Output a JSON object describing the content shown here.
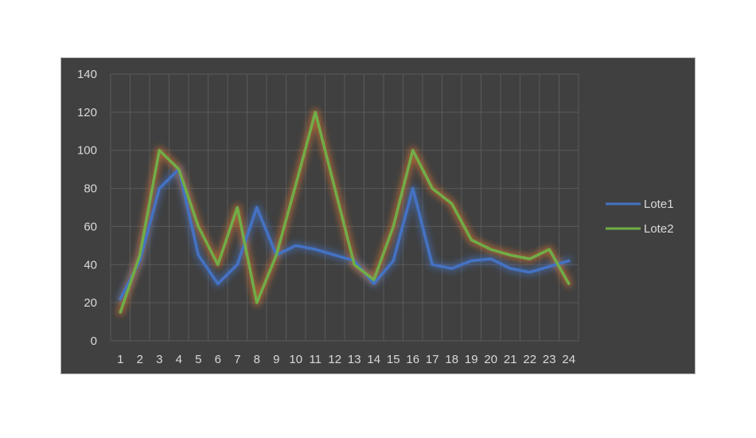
{
  "chart_data": {
    "type": "line",
    "title": "",
    "xlabel": "",
    "ylabel": "",
    "categories": [
      "1",
      "2",
      "3",
      "4",
      "5",
      "6",
      "7",
      "8",
      "9",
      "10",
      "11",
      "12",
      "13",
      "14",
      "15",
      "16",
      "17",
      "18",
      "19",
      "20",
      "21",
      "22",
      "23",
      "24"
    ],
    "ylim": [
      0,
      140
    ],
    "yticks": [
      0,
      20,
      40,
      60,
      80,
      100,
      120,
      140
    ],
    "grid": true,
    "legend_position": "right",
    "background": "#404040",
    "series": [
      {
        "name": "Lote1",
        "color": "#4472c4",
        "glow": "#4472c4",
        "values": [
          22,
          42,
          80,
          90,
          45,
          30,
          40,
          70,
          45,
          50,
          48,
          45,
          42,
          30,
          42,
          80,
          40,
          38,
          42,
          43,
          38,
          36,
          39,
          42
        ]
      },
      {
        "name": "Lote2",
        "color": "#70ad47",
        "glow": "#ed7d31",
        "values": [
          15,
          45,
          100,
          90,
          60,
          40,
          70,
          20,
          45,
          82,
          120,
          80,
          40,
          32,
          60,
          100,
          80,
          72,
          53,
          48,
          45,
          43,
          48,
          30
        ]
      }
    ]
  }
}
